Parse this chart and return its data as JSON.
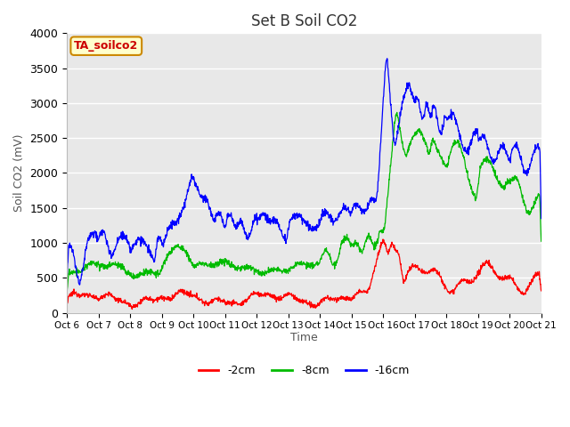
{
  "title": "Set B Soil CO2",
  "ylabel": "Soil CO2 (mV)",
  "xlabel": "Time",
  "tag_label": "TA_soilco2",
  "legend_labels": [
    "-2cm",
    "-8cm",
    "-16cm"
  ],
  "legend_colors": [
    "#ff0000",
    "#00bb00",
    "#0000ff"
  ],
  "ylim": [
    0,
    4000
  ],
  "yticks": [
    0,
    500,
    1000,
    1500,
    2000,
    2500,
    3000,
    3500,
    4000
  ],
  "xtick_labels": [
    "Oct 6",
    "Oct 7",
    "Oct 8",
    "Oct 9",
    "Oct 10",
    "Oct 11",
    "Oct 12",
    "Oct 13",
    "Oct 14",
    "Oct 15",
    "Oct 16",
    "Oct 17",
    "Oct 18",
    "Oct 19",
    "Oct 20",
    "Oct 21"
  ],
  "bg_color": "#e8e8e8",
  "fig_bg": "#ffffff",
  "grid_color": "#ffffff",
  "tag_bg": "#ffffcc",
  "tag_border": "#cc8800"
}
